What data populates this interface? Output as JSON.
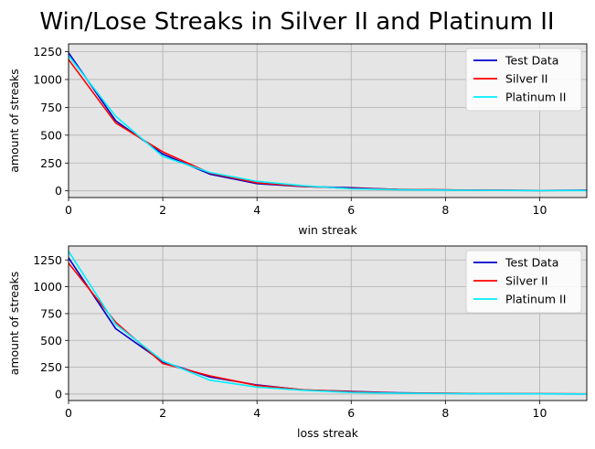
{
  "title": "Win/Lose Streaks in Silver II and Platinum II",
  "chart_data": [
    {
      "type": "line",
      "xlabel": "win streak",
      "ylabel": "amount of streaks",
      "xlim": [
        0,
        11
      ],
      "ylim": [
        -60,
        1320
      ],
      "xticks": [
        0,
        2,
        4,
        6,
        8,
        10
      ],
      "yticks": [
        0,
        250,
        500,
        750,
        1000,
        1250
      ],
      "grid": true,
      "legend": "top-right",
      "x": [
        0,
        1,
        2,
        3,
        4,
        5,
        6,
        7,
        8,
        9,
        10,
        11
      ],
      "series": [
        {
          "name": "Test Data",
          "color": "#0000cc",
          "values": [
            1240,
            630,
            330,
            150,
            65,
            38,
            28,
            12,
            8,
            5,
            3,
            6
          ]
        },
        {
          "name": "Silver II",
          "color": "#ff0000",
          "values": [
            1180,
            610,
            350,
            160,
            72,
            40,
            22,
            14,
            8,
            6,
            3,
            5
          ]
        },
        {
          "name": "Platinum II",
          "color": "#00eeff",
          "values": [
            1215,
            670,
            310,
            165,
            85,
            45,
            18,
            10,
            6,
            4,
            2,
            3
          ]
        }
      ]
    },
    {
      "type": "line",
      "xlabel": "loss streak",
      "ylabel": "amount of streaks",
      "xlim": [
        0,
        11
      ],
      "ylim": [
        -60,
        1380
      ],
      "xticks": [
        0,
        2,
        4,
        6,
        8,
        10
      ],
      "yticks": [
        0,
        250,
        500,
        750,
        1000,
        1250
      ],
      "grid": true,
      "legend": "top-right",
      "x": [
        0,
        1,
        2,
        3,
        4,
        5,
        6,
        7,
        8,
        9,
        10,
        11
      ],
      "series": [
        {
          "name": "Test Data",
          "color": "#0000cc",
          "values": [
            1270,
            610,
            300,
            160,
            85,
            38,
            25,
            12,
            7,
            4,
            2,
            1
          ]
        },
        {
          "name": "Silver II",
          "color": "#ff0000",
          "values": [
            1220,
            670,
            285,
            170,
            80,
            40,
            22,
            10,
            8,
            5,
            3,
            2
          ]
        },
        {
          "name": "Platinum II",
          "color": "#00eeff",
          "values": [
            1330,
            650,
            310,
            130,
            65,
            35,
            15,
            8,
            5,
            3,
            2,
            1
          ]
        }
      ]
    }
  ]
}
